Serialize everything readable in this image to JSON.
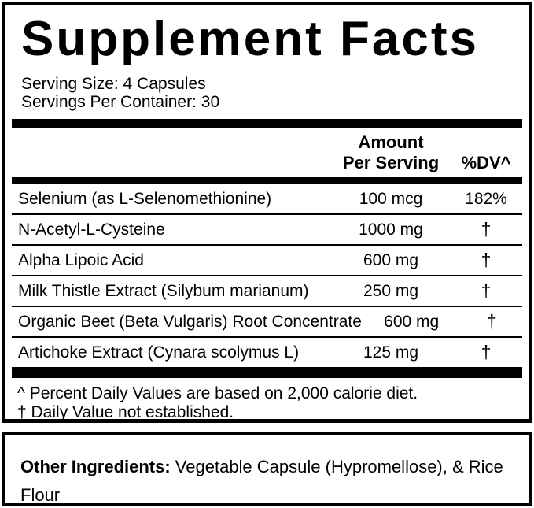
{
  "label": {
    "title": "Supplement Facts",
    "serving_size": "Serving Size: 4 Capsules",
    "servings_per_container": "Servings Per Container: 30",
    "header": {
      "amount_line1": "Amount",
      "amount_line2": "Per Serving",
      "dv": "%DV^"
    },
    "rows": [
      {
        "name": "Selenium (as L-Selenomethionine)",
        "amount": "100 mcg",
        "dv": "182%"
      },
      {
        "name": "N-Acetyl-L-Cysteine",
        "amount": "1000 mg",
        "dv": "†"
      },
      {
        "name": "Alpha Lipoic Acid",
        "amount": "600 mg",
        "dv": "†"
      },
      {
        "name": "Milk Thistle Extract (Silybum marianum)",
        "amount": "250 mg",
        "dv": "†"
      },
      {
        "name": "Organic Beet (Beta Vulgaris) Root Concentrate",
        "amount": "600 mg",
        "dv": "†"
      },
      {
        "name": "Artichoke Extract (Cynara scolymus L)",
        "amount": "125 mg",
        "dv": "†"
      }
    ],
    "footnotes": [
      "^ Percent Daily Values are based on 2,000 calorie diet.",
      "† Daily Value not established."
    ]
  },
  "other_ingredients": {
    "label": "Other Ingredients:",
    "text": " Vegetable Capsule (Hypromellose), & Rice Flour"
  },
  "colors": {
    "ink": "#000000",
    "background": "#ffffff"
  }
}
